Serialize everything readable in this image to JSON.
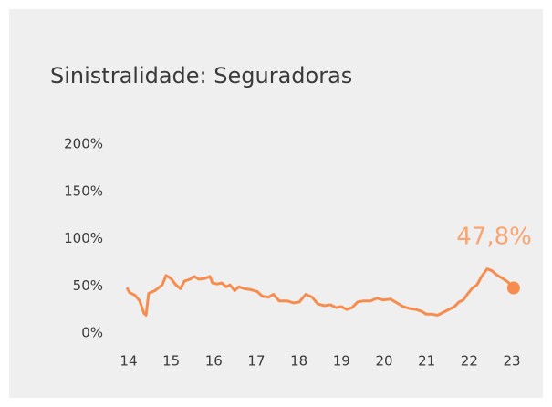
{
  "chart_data": {
    "type": "line",
    "title": "Sinistralidade: Seguradoras",
    "x": [
      13.96,
      14.02,
      14.15,
      14.26,
      14.36,
      14.41,
      14.47,
      14.62,
      14.79,
      14.88,
      14.99,
      15.11,
      15.22,
      15.31,
      15.44,
      15.54,
      15.65,
      15.8,
      15.91,
      15.97,
      16.08,
      16.19,
      16.29,
      16.38,
      16.49,
      16.59,
      16.72,
      16.87,
      17.02,
      17.14,
      17.29,
      17.4,
      17.54,
      17.73,
      17.88,
      18.01,
      18.16,
      18.31,
      18.44,
      18.59,
      18.74,
      18.87,
      19.0,
      19.12,
      19.25,
      19.38,
      19.51,
      19.68,
      19.83,
      19.98,
      20.15,
      20.3,
      20.45,
      20.6,
      20.75,
      20.88,
      20.99,
      21.11,
      21.26,
      21.39,
      21.52,
      21.65,
      21.76,
      21.86,
      21.97,
      22.08,
      22.18,
      22.29,
      22.42,
      22.53,
      22.66,
      22.78,
      22.91,
      23.04
    ],
    "series": [
      {
        "color": "#f68d4e",
        "values": [
          48,
          43,
          40,
          34,
          21,
          19,
          42,
          45,
          51,
          61,
          58,
          51,
          47,
          55,
          57,
          60,
          57,
          58,
          60,
          53,
          52,
          53,
          49,
          51,
          45,
          49,
          47,
          46,
          44,
          39,
          38,
          41,
          34,
          34,
          32,
          33,
          41,
          38,
          31,
          29,
          30,
          27,
          28,
          25,
          27,
          33,
          34,
          34,
          37,
          35,
          36,
          32,
          28,
          26,
          25,
          23,
          20,
          20,
          19,
          22,
          25,
          28,
          33,
          35,
          42,
          48,
          51,
          60,
          68,
          66,
          61,
          58,
          54,
          47.8
        ],
        "value_labels": [
          null,
          null,
          null,
          null,
          null,
          null,
          null,
          null,
          null,
          null,
          null,
          null,
          null,
          null,
          null,
          null,
          null,
          null,
          null,
          null,
          null,
          null,
          null,
          null,
          null,
          null,
          null,
          null,
          null,
          null,
          null,
          null,
          null,
          null,
          null,
          null,
          null,
          null,
          null,
          null,
          null,
          null,
          null,
          null,
          null,
          null,
          null,
          null,
          null,
          null,
          null,
          null,
          null,
          null,
          null,
          null,
          null,
          null,
          null,
          null,
          null,
          null,
          null,
          null,
          null,
          null,
          null,
          null,
          null,
          null,
          null,
          null,
          null,
          "47,8%"
        ]
      }
    ],
    "xlim": [
      13.75,
      23.3
    ],
    "xticks": [
      14,
      15,
      16,
      17,
      18,
      19,
      20,
      21,
      22,
      23
    ],
    "ylim": [
      0,
      200
    ],
    "yticks": [
      {
        "value": 0,
        "label": "0%"
      },
      {
        "value": 50,
        "label": "50%"
      },
      {
        "value": 100,
        "label": "100%"
      },
      {
        "value": 150,
        "label": "150%"
      },
      {
        "value": 200,
        "label": "200%"
      }
    ],
    "grid": false
  }
}
